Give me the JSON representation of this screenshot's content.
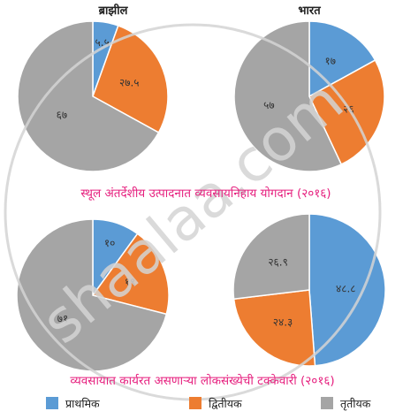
{
  "colors": {
    "primary": "#5b9bd5",
    "secondary": "#ed7d31",
    "tertiary": "#a5a5a5",
    "caption": "#e6217f",
    "watermark": "#d4d4d4"
  },
  "watermark": "shaalaa.com",
  "captions": {
    "gdp": "स्थूल अंतर्देशीय उत्पादनात व्यवसायनिहाय योगदान (२०१६)",
    "employment": "व्यवसायात कार्यरत असणाऱ्या लोकसंख्येची टक्केवारी (२०१६)"
  },
  "legend": [
    {
      "label": "प्राथमिक",
      "color": "#5b9bd5"
    },
    {
      "label": "द्वितीयक",
      "color": "#ed7d31"
    },
    {
      "label": "तृतीयक",
      "color": "#a5a5a5"
    }
  ],
  "chart_data": [
    {
      "type": "pie",
      "title": "ब्राझील",
      "series_names": [
        "प्राथमिक",
        "द्वितीयक",
        "तृतीयक"
      ],
      "values": [
        5.5,
        27.5,
        67
      ],
      "labels": [
        "५.५",
        "२७.५",
        "६७"
      ]
    },
    {
      "type": "pie",
      "title": "भारत",
      "series_names": [
        "प्राथमिक",
        "द्वितीयक",
        "तृतीयक"
      ],
      "values": [
        17,
        26,
        57
      ],
      "labels": [
        "१७",
        "२६",
        "५७"
      ]
    },
    {
      "type": "pie",
      "title": "",
      "series_names": [
        "प्राथमिक",
        "द्वितीयक",
        "तृतीयक"
      ],
      "values": [
        10,
        19,
        71
      ],
      "labels": [
        "१०",
        "१९",
        "७१"
      ]
    },
    {
      "type": "pie",
      "title": "",
      "series_names": [
        "प्राथमिक",
        "द्वितीयक",
        "तृतीयक"
      ],
      "values": [
        48.8,
        24.3,
        26.9
      ],
      "labels": [
        "४८.८",
        "२४.३",
        "२६.९"
      ]
    }
  ]
}
